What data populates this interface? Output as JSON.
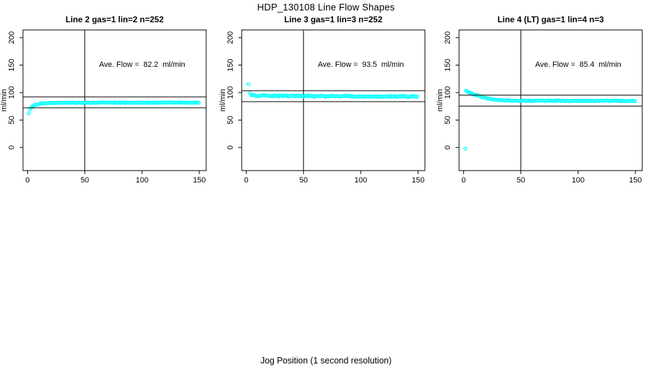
{
  "title": "HDP_130108  Line Flow Shapes",
  "xlabel": "Jog Position (1 second resolution)",
  "ylabel": "ml/min",
  "colors": {
    "points": "#00ffff",
    "axes": "#000000",
    "background": "#ffffff"
  },
  "chart_data": [
    {
      "type": "scatter",
      "title": "Line 2 gas=1 lin=2 n=252",
      "annotation": "Ave. Flow =  82.2  ml/min",
      "ave_flow_ml_min": 82.2,
      "n": 252,
      "gas": 1,
      "lin": 2,
      "xticks": [
        0,
        50,
        100,
        150
      ],
      "yticks": [
        0,
        50,
        100,
        150,
        200
      ],
      "xlim": [
        -4,
        156
      ],
      "ylim": [
        -42,
        214
      ],
      "ref_lines_h": [
        92.2,
        72.2
      ],
      "ref_line_v": 50,
      "outliers": [
        [
          1,
          62
        ]
      ],
      "anchors": [
        [
          2,
          69
        ],
        [
          3,
          72
        ],
        [
          4,
          74.5
        ],
        [
          5,
          76
        ],
        [
          6,
          77
        ],
        [
          8,
          78.5
        ],
        [
          10,
          79.3
        ],
        [
          13,
          80.2
        ],
        [
          16,
          80.7
        ],
        [
          20,
          81.1
        ],
        [
          25,
          81.4
        ],
        [
          30,
          81.6
        ],
        [
          60,
          81.7
        ],
        [
          100,
          81.8
        ],
        [
          150,
          81.8
        ]
      ],
      "band_step": 1.2,
      "jitter": 0.6
    },
    {
      "type": "scatter",
      "title": "Line 3 gas=1 lin=3 n=252",
      "annotation": "Ave. Flow =  93.5  ml/min",
      "ave_flow_ml_min": 93.5,
      "n": 252,
      "gas": 1,
      "lin": 3,
      "xticks": [
        0,
        50,
        100,
        150
      ],
      "yticks": [
        0,
        50,
        100,
        150,
        200
      ],
      "xlim": [
        -4,
        156
      ],
      "ylim": [
        -42,
        214
      ],
      "ref_lines_h": [
        103.5,
        83.5
      ],
      "ref_line_v": 50,
      "outliers": [
        [
          2,
          115
        ]
      ],
      "anchors": [
        [
          3,
          98.5
        ],
        [
          4,
          96.5
        ],
        [
          5,
          95.5
        ],
        [
          6,
          95
        ],
        [
          8,
          94.6
        ],
        [
          12,
          94.3
        ],
        [
          20,
          94.1
        ],
        [
          40,
          93.8
        ],
        [
          70,
          93.4
        ],
        [
          110,
          93.1
        ],
        [
          150,
          92.8
        ]
      ],
      "band_step": 1.2,
      "jitter": 1.4
    },
    {
      "type": "scatter",
      "title": "Line 4 (LT) gas=1 lin=4 n=3",
      "annotation": "Ave. Flow =  85.4  ml/min",
      "ave_flow_ml_min": 85.4,
      "n": 3,
      "gas": 1,
      "lin": 4,
      "xticks": [
        0,
        50,
        100,
        150
      ],
      "yticks": [
        0,
        50,
        100,
        150,
        200
      ],
      "xlim": [
        -4,
        156
      ],
      "ylim": [
        -42,
        214
      ],
      "ref_lines_h": [
        95.4,
        75.4
      ],
      "ref_line_v": 50,
      "outliers": [
        [
          1.5,
          -2
        ]
      ],
      "anchors": [
        [
          2,
          103
        ],
        [
          4,
          101.5
        ],
        [
          6,
          99.5
        ],
        [
          8,
          97.5
        ],
        [
          10,
          95.8
        ],
        [
          13,
          93.8
        ],
        [
          16,
          92
        ],
        [
          19,
          90.3
        ],
        [
          22,
          89
        ],
        [
          25,
          87.9
        ],
        [
          28,
          87.1
        ],
        [
          32,
          86.3
        ],
        [
          36,
          85.8
        ],
        [
          40,
          85.5
        ],
        [
          50,
          85.2
        ],
        [
          100,
          85.1
        ],
        [
          150,
          85.0
        ]
      ],
      "band_step": 1.2,
      "jitter": 0.8
    }
  ],
  "layout_panels_left": [
    0,
    314,
    626
  ]
}
